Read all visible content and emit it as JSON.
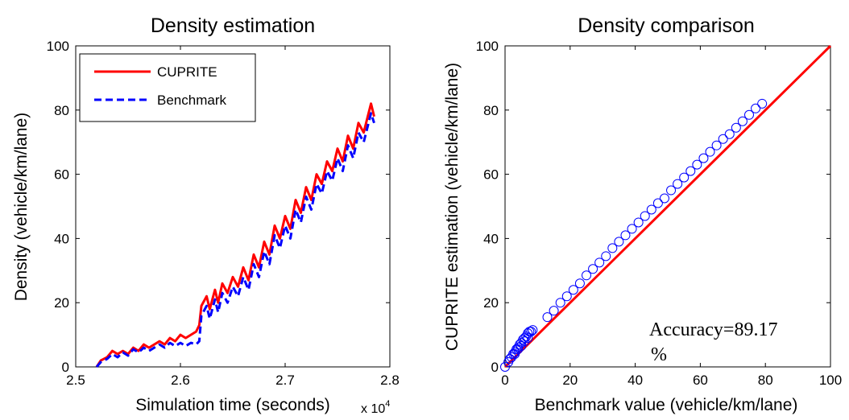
{
  "chart_data": [
    {
      "type": "line",
      "title": "Density estimation",
      "xlabel": "Simulation time (seconds)",
      "x_multiplier": {
        "base": "x 10",
        "exp": "4"
      },
      "ylabel": "Density (vehicle/km/lane)",
      "xlim": [
        2.5,
        2.8
      ],
      "ylim": [
        0,
        100
      ],
      "xticks": [
        2.5,
        2.6,
        2.7,
        2.8
      ],
      "xtick_labels": [
        "2.5",
        "2.6",
        "2.7",
        "2.8"
      ],
      "yticks": [
        0,
        20,
        40,
        60,
        80,
        100
      ],
      "ytick_labels": [
        "0",
        "20",
        "40",
        "60",
        "80",
        "100"
      ],
      "grid": false,
      "legend_position": "top-left",
      "series": [
        {
          "name": "CUPRITE",
          "color": "#ff0000",
          "style": "solid",
          "points": [
            [
              2.52,
              0
            ],
            [
              2.524,
              2
            ],
            [
              2.53,
              3
            ],
            [
              2.535,
              5
            ],
            [
              2.54,
              4
            ],
            [
              2.545,
              5
            ],
            [
              2.55,
              4
            ],
            [
              2.555,
              6
            ],
            [
              2.56,
              5
            ],
            [
              2.565,
              7
            ],
            [
              2.57,
              6
            ],
            [
              2.575,
              7
            ],
            [
              2.58,
              8
            ],
            [
              2.585,
              7
            ],
            [
              2.59,
              9
            ],
            [
              2.595,
              8
            ],
            [
              2.6,
              10
            ],
            [
              2.605,
              9
            ],
            [
              2.61,
              10
            ],
            [
              2.615,
              11
            ],
            [
              2.618,
              13
            ],
            [
              2.62,
              19
            ],
            [
              2.625,
              22
            ],
            [
              2.628,
              18
            ],
            [
              2.633,
              24
            ],
            [
              2.636,
              20
            ],
            [
              2.64,
              26
            ],
            [
              2.645,
              23
            ],
            [
              2.65,
              28
            ],
            [
              2.655,
              25
            ],
            [
              2.66,
              31
            ],
            [
              2.665,
              27
            ],
            [
              2.67,
              35
            ],
            [
              2.675,
              31
            ],
            [
              2.68,
              39
            ],
            [
              2.685,
              35
            ],
            [
              2.69,
              44
            ],
            [
              2.695,
              40
            ],
            [
              2.7,
              47
            ],
            [
              2.705,
              43
            ],
            [
              2.71,
              52
            ],
            [
              2.715,
              48
            ],
            [
              2.72,
              56
            ],
            [
              2.725,
              52
            ],
            [
              2.73,
              60
            ],
            [
              2.735,
              57
            ],
            [
              2.74,
              64
            ],
            [
              2.745,
              61
            ],
            [
              2.75,
              68
            ],
            [
              2.755,
              64
            ],
            [
              2.76,
              72
            ],
            [
              2.765,
              68
            ],
            [
              2.77,
              76
            ],
            [
              2.775,
              73
            ],
            [
              2.782,
              82
            ],
            [
              2.785,
              78
            ]
          ]
        },
        {
          "name": "Benchmark",
          "color": "#0000ff",
          "style": "dashed",
          "points": [
            [
              2.52,
              0
            ],
            [
              2.524,
              1.5
            ],
            [
              2.53,
              2.5
            ],
            [
              2.535,
              4
            ],
            [
              2.54,
              3
            ],
            [
              2.545,
              4.5
            ],
            [
              2.55,
              3.5
            ],
            [
              2.555,
              5.5
            ],
            [
              2.56,
              4.5
            ],
            [
              2.565,
              6
            ],
            [
              2.57,
              5
            ],
            [
              2.575,
              6
            ],
            [
              2.58,
              7
            ],
            [
              2.585,
              6
            ],
            [
              2.59,
              7.5
            ],
            [
              2.595,
              6.5
            ],
            [
              2.6,
              7.5
            ],
            [
              2.605,
              6.5
            ],
            [
              2.61,
              7.5
            ],
            [
              2.615,
              7
            ],
            [
              2.618,
              8
            ],
            [
              2.62,
              16
            ],
            [
              2.625,
              19
            ],
            [
              2.628,
              15
            ],
            [
              2.633,
              21
            ],
            [
              2.636,
              17
            ],
            [
              2.64,
              23
            ],
            [
              2.645,
              20
            ],
            [
              2.65,
              25
            ],
            [
              2.655,
              22
            ],
            [
              2.66,
              28
            ],
            [
              2.665,
              24
            ],
            [
              2.67,
              32
            ],
            [
              2.675,
              28
            ],
            [
              2.68,
              36
            ],
            [
              2.685,
              32
            ],
            [
              2.69,
              41
            ],
            [
              2.695,
              37
            ],
            [
              2.7,
              44
            ],
            [
              2.705,
              40
            ],
            [
              2.71,
              49
            ],
            [
              2.715,
              45
            ],
            [
              2.72,
              53
            ],
            [
              2.725,
              49
            ],
            [
              2.73,
              57
            ],
            [
              2.735,
              54
            ],
            [
              2.74,
              61
            ],
            [
              2.745,
              58
            ],
            [
              2.75,
              65
            ],
            [
              2.755,
              61
            ],
            [
              2.76,
              69
            ],
            [
              2.765,
              65
            ],
            [
              2.77,
              73
            ],
            [
              2.775,
              70
            ],
            [
              2.782,
              79
            ],
            [
              2.785,
              76
            ]
          ]
        }
      ]
    },
    {
      "type": "scatter",
      "title": "Density comparison",
      "xlabel": "Benchmark value (vehicle/km/lane)",
      "ylabel": "CUPRITE estimation (vehicle/km/lane)",
      "xlim": [
        0,
        100
      ],
      "ylim": [
        0,
        100
      ],
      "xticks": [
        0,
        20,
        40,
        60,
        80,
        100
      ],
      "xtick_labels": [
        "0",
        "20",
        "40",
        "60",
        "80",
        "100"
      ],
      "yticks": [
        0,
        20,
        40,
        60,
        80,
        100
      ],
      "ytick_labels": [
        "0",
        "20",
        "40",
        "60",
        "80",
        "100"
      ],
      "grid": false,
      "annotation": [
        "Accuracy=89.17",
        "%"
      ],
      "reference_line": {
        "x": [
          0,
          100
        ],
        "y": [
          0,
          100
        ],
        "color": "#ff0000"
      },
      "marker_color": "#0000ff",
      "x": [
        0,
        1,
        1.5,
        2,
        2.5,
        3,
        3.5,
        4,
        4.5,
        5,
        5.5,
        6,
        6.5,
        7,
        7.5,
        8,
        8.5,
        3,
        4,
        5,
        6,
        7,
        13,
        15,
        17,
        19,
        21,
        23,
        25,
        27,
        29,
        31,
        33,
        35,
        37,
        39,
        41,
        43,
        45,
        47,
        49,
        51,
        53,
        55,
        57,
        59,
        61,
        63,
        65,
        67,
        69,
        71,
        73,
        75,
        77,
        79
      ],
      "y": [
        0,
        1.5,
        2.5,
        3,
        4,
        4.5,
        5.5,
        6,
        7,
        7.5,
        8.5,
        9,
        9.5,
        10.5,
        11,
        11,
        11.5,
        4,
        5.5,
        6.5,
        8,
        9,
        15.5,
        17.5,
        20,
        22,
        24,
        26,
        28.5,
        30.5,
        32.5,
        34.5,
        37,
        39,
        41,
        43,
        45,
        47,
        49,
        51,
        52.5,
        55,
        57,
        59,
        61,
        63,
        65,
        67,
        69,
        71,
        72.5,
        74.5,
        76.5,
        78.5,
        80.5,
        82
      ]
    }
  ]
}
